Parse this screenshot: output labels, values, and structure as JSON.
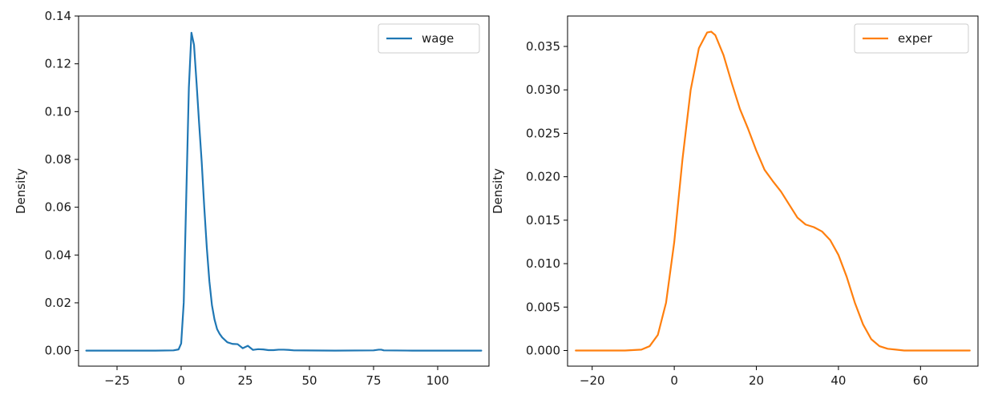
{
  "chart_data": [
    {
      "type": "line",
      "ylabel": "Density",
      "xlabel": "",
      "xlim": [
        -40,
        120
      ],
      "ylim": [
        -0.0065,
        0.14
      ],
      "xticks": [
        -25,
        0,
        25,
        50,
        75,
        100
      ],
      "yticks": [
        0.0,
        0.02,
        0.04,
        0.06,
        0.08,
        0.1,
        0.12,
        0.14
      ],
      "yticks_labels": [
        "0.00",
        "0.02",
        "0.04",
        "0.06",
        "0.08",
        "0.10",
        "0.12",
        "0.14"
      ],
      "legend_position": "top-right",
      "grid": false,
      "series": [
        {
          "name": "wage",
          "color": "#1f77b4",
          "x": [
            -37,
            -10,
            -3,
            -1,
            0,
            1,
            2,
            3,
            4,
            5,
            6,
            7,
            8,
            9,
            10,
            11,
            12,
            13,
            14,
            15,
            16,
            17,
            18,
            20,
            22,
            24,
            26,
            28,
            30,
            32,
            34,
            36,
            38,
            40,
            42,
            44,
            60,
            75,
            77,
            78,
            79,
            90,
            117
          ],
          "y": [
            0.0,
            0.0,
            0.0001,
            0.0005,
            0.003,
            0.02,
            0.065,
            0.11,
            0.133,
            0.128,
            0.112,
            0.095,
            0.079,
            0.06,
            0.043,
            0.029,
            0.019,
            0.013,
            0.009,
            0.007,
            0.0055,
            0.0045,
            0.0035,
            0.0028,
            0.0027,
            0.001,
            0.002,
            0.0003,
            0.0006,
            0.0005,
            0.0002,
            0.0002,
            0.0004,
            0.0004,
            0.0003,
            0.0001,
            0.0,
            0.0001,
            0.0004,
            0.0004,
            0.0001,
            0.0,
            0.0
          ]
        }
      ]
    },
    {
      "type": "line",
      "ylabel": "Density",
      "xlabel": "",
      "xlim": [
        -26,
        74
      ],
      "ylim": [
        -0.0018,
        0.0385
      ],
      "xticks": [
        -20,
        0,
        20,
        40,
        60
      ],
      "yticks": [
        0.0,
        0.005,
        0.01,
        0.015,
        0.02,
        0.025,
        0.03,
        0.035
      ],
      "yticks_labels": [
        "0.000",
        "0.005",
        "0.010",
        "0.015",
        "0.020",
        "0.025",
        "0.030",
        "0.035"
      ],
      "legend_position": "top-right",
      "grid": false,
      "series": [
        {
          "name": "exper",
          "color": "#ff7f0e",
          "x": [
            -24,
            -12,
            -8,
            -6,
            -4,
            -2,
            0,
            2,
            4,
            6,
            8,
            9,
            10,
            12,
            14,
            16,
            18,
            20,
            22,
            24,
            26,
            28,
            30,
            32,
            34,
            36,
            38,
            40,
            42,
            44,
            46,
            48,
            50,
            52,
            54,
            56,
            60,
            72
          ],
          "y": [
            0.0,
            0.0,
            0.0001,
            0.0005,
            0.0018,
            0.0055,
            0.0125,
            0.022,
            0.03,
            0.0348,
            0.0366,
            0.0367,
            0.0363,
            0.034,
            0.0308,
            0.0278,
            0.0255,
            0.023,
            0.0208,
            0.0195,
            0.0183,
            0.0168,
            0.0153,
            0.0145,
            0.0142,
            0.0137,
            0.0127,
            0.011,
            0.0085,
            0.0055,
            0.003,
            0.0013,
            0.0005,
            0.0002,
            0.0001,
            0.0,
            0.0,
            0.0
          ]
        }
      ]
    }
  ]
}
